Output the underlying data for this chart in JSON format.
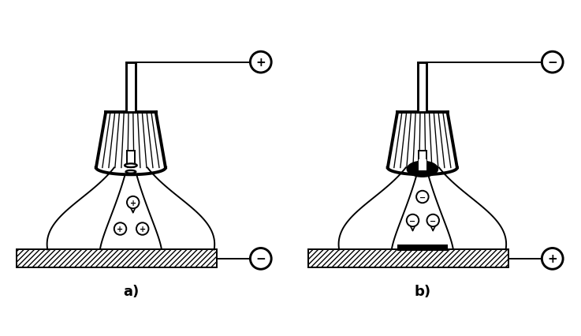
{
  "label_a": "a)",
  "label_b": "b)",
  "bg_color": "#ffffff",
  "line_color": "#000000"
}
